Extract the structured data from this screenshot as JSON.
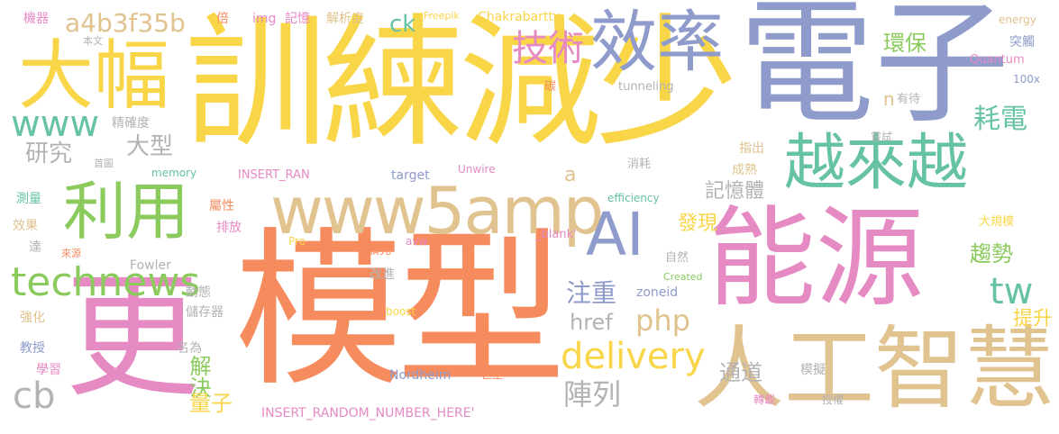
{
  "palette": {
    "yellow": "#F9D548",
    "blue": "#8E9BCB",
    "orange": "#F68B5E",
    "pink": "#E68AC4",
    "green": "#8BCB5D",
    "teal": "#66C2A5",
    "tan": "#E0C38E",
    "gray": "#B3B3B3"
  },
  "words": [
    "訓練減少",
    "電子",
    "模型",
    "更",
    "能源",
    "人工智慧",
    "大幅",
    "效率",
    "利用",
    "越來越",
    "www5amp",
    "AI",
    "technews",
    "delivery",
    "技術",
    "www",
    "cb",
    "php",
    "tw",
    "a4b3f35b",
    "耗電",
    "環保",
    "研究",
    "大型",
    "解決",
    "量子",
    "陣列",
    "記憶體",
    "發現",
    "注重",
    "href",
    "通道",
    "趨勢",
    "提升",
    "ck",
    "Chakrabartty",
    "Freepik",
    "img",
    "記憶",
    "解析度",
    "倍",
    "機器",
    "本文",
    "energy",
    "突觸",
    "Quantum",
    "100x",
    "碳",
    "tunneling",
    "n",
    "有待",
    "精確度",
    "首圖",
    "memory",
    "嘗試",
    "指出",
    "成熟",
    "消耗",
    "Unwire",
    "target",
    "INSERT_RAN",
    "a",
    "efficiency",
    "測量",
    "效果",
    "屬性",
    "排放",
    "_blank'",
    "大規模",
    "達",
    "來源",
    "Pro",
    "avw",
    "擴充",
    "自然",
    "Fowler",
    "強化",
    "改進",
    "Created",
    "zoneid",
    "動態",
    "儲存器",
    "boost",
    "教授",
    "名為",
    "學習",
    "src",
    "巨型",
    "模擬",
    "Nordheim",
    "轉載",
    "授權",
    "INSERT_RANDOM_NUMBER_HERE'"
  ]
}
